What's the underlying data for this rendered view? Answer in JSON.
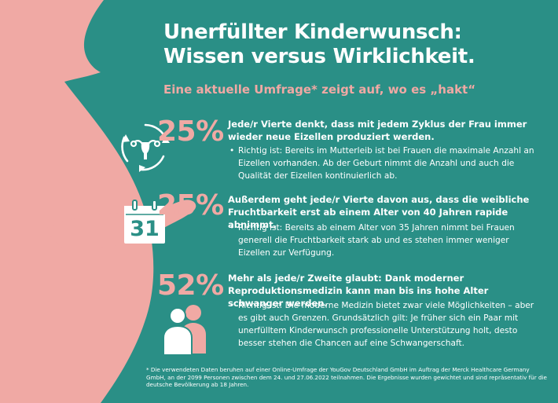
{
  "header": {
    "title_line1": "Unerfüllter Kinderwunsch:",
    "title_line2": "Wissen versus Wirklichkeit.",
    "subtitle": "Eine aktuelle Umfrage* zeigt auf, wo es „hakt“"
  },
  "findings": [
    {
      "percent": "25%",
      "claim": "Jede/r Vierte denkt, dass mit jedem Zyklus der Frau immer wieder neue Eizellen produziert werden.",
      "fact": "Richtig ist: Bereits im Mutterleib ist bei Frauen die maximale Anzahl an Eizellen vorhanden. Ab der Geburt nimmt die Anzahl und auch die Qualität der Eizellen kontinuierlich ab.",
      "icon": "uterus-cycle-icon"
    },
    {
      "percent": "25%",
      "claim": "Außerdem geht jede/r Vierte davon aus, dass die weibliche Fruchtbarkeit erst ab einem Alter von 40 Jahren rapide abnimmt.",
      "fact": "Richtig ist: Bereits ab einem Alter von 35 Jahren nimmt bei Frauen generell die Fruchtbarkeit stark ab und es stehen immer weniger Eizellen zur Verfügung.",
      "icon": "calendar-icon",
      "calendar_day": "31"
    },
    {
      "percent": "52%",
      "claim": "Mehr als jede/r Zweite glaubt: Dank moderner Reproduktionsmedizin kann man bis ins hohe Alter schwanger werden.",
      "fact": "Richtig ist: Die moderne Medizin bietet zwar viele Möglichkeiten – aber es gibt auch Grenzen. Grundsätzlich gilt: Je früher sich ein Paar mit unerfülltem Kinderwunsch professionelle Unterstützung holt, desto besser stehen die Chancen auf eine Schwangerschaft.",
      "icon": "couple-icon"
    }
  ],
  "bullet": "•",
  "footnote": "* Die verwendeten Daten beruhen auf einer Online-Umfrage der YouGov Deutschland GmbH im Auftrag der Merck Healthcare Germany GmbH, an der 2099 Personen zwischen dem 24. und 27.06.2022 teilnahmen. Die Ergebnisse wurden gewichtet und sind repräsentativ für die deutsche Bevölkerung ab 18 Jahren.",
  "colors": {
    "background": "#2a8f86",
    "accent_pink": "#f0a9a4",
    "text": "#ffffff"
  }
}
